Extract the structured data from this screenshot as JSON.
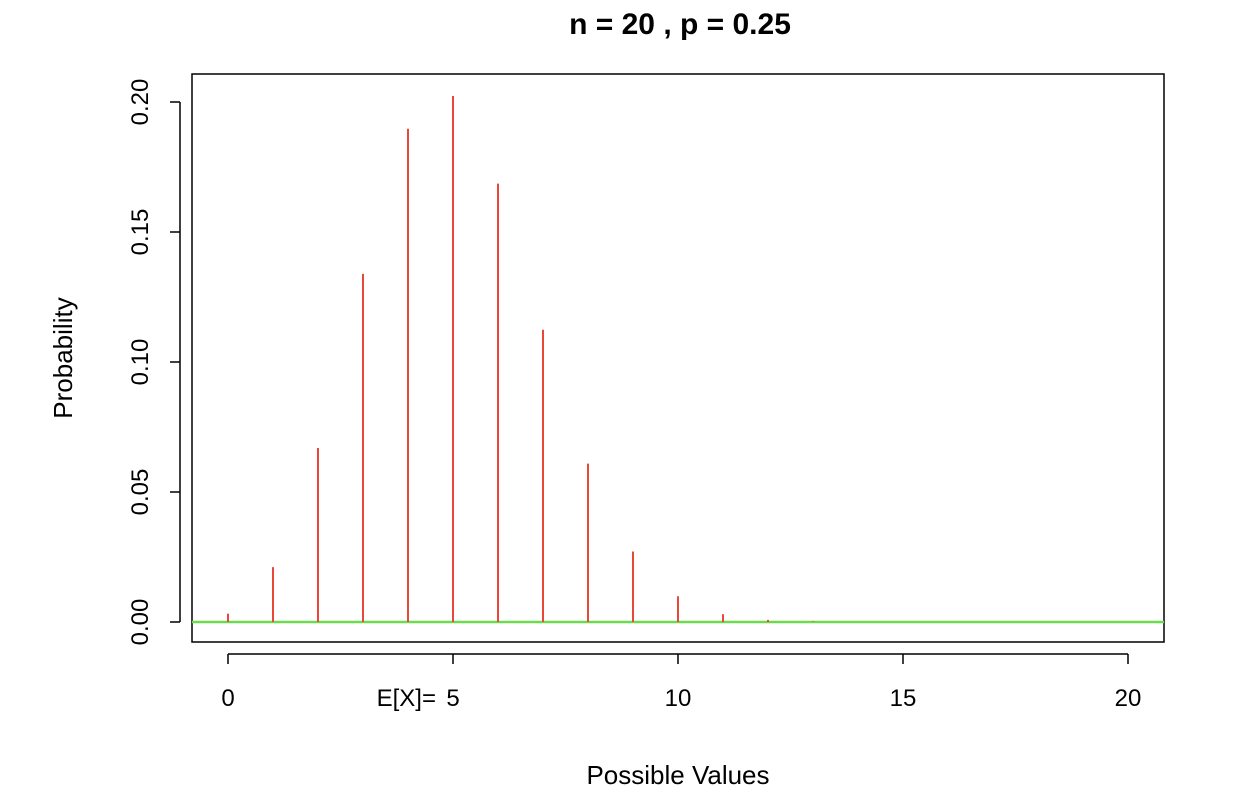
{
  "chart_data": {
    "type": "bar",
    "title": "n = 20 , p = 0.25",
    "xlabel": "Possible Values",
    "ylabel": "Probability",
    "annotation": "E[X]=",
    "x": [
      0,
      1,
      2,
      3,
      4,
      5,
      6,
      7,
      8,
      9,
      10,
      11,
      12,
      13,
      14,
      15,
      16,
      17,
      18,
      19,
      20
    ],
    "values": [
      0.0032,
      0.0211,
      0.0669,
      0.1339,
      0.1897,
      0.2023,
      0.1686,
      0.1124,
      0.0609,
      0.0271,
      0.0099,
      0.003,
      0.0008,
      0.0002,
      0.0,
      0.0,
      0.0,
      0.0,
      0.0,
      0.0,
      0.0
    ],
    "xlim": [
      0,
      20
    ],
    "ylim": [
      0,
      0.2
    ],
    "xticks": [
      "0",
      "5",
      "10",
      "15",
      "20"
    ],
    "yticks": [
      "0.00",
      "0.05",
      "0.10",
      "0.15",
      "0.20"
    ],
    "bar_color": "#e8473a",
    "baseline_color": "#6ddb4f",
    "grid": false,
    "legend": "none"
  }
}
